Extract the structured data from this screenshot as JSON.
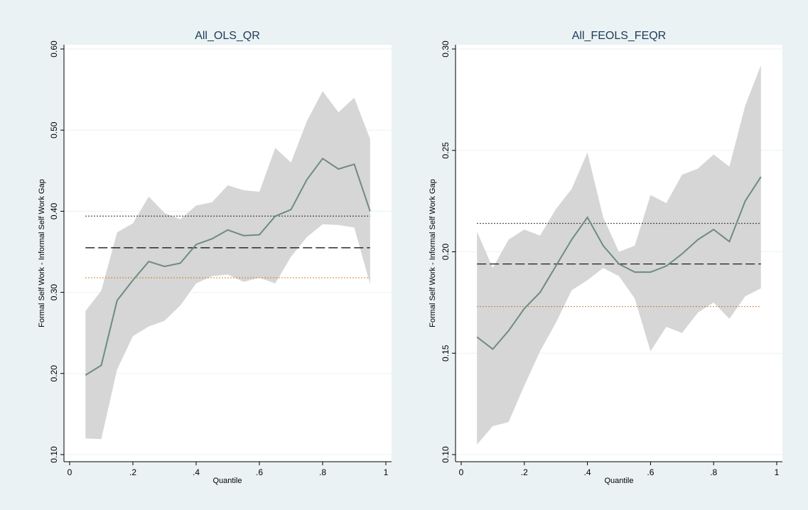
{
  "chart_data": [
    {
      "type": "line",
      "title": "All_OLS_QR",
      "xlabel": "Quantile",
      "ylabel": "Formal Self Work - Informal Self Work Gap",
      "xlim": [
        0,
        1
      ],
      "ylim": [
        0.1,
        0.6
      ],
      "x_ticks": [
        "0",
        ".2",
        ".4",
        ".6",
        ".8",
        "1"
      ],
      "y_ticks": [
        "0.10",
        "0.20",
        "0.30",
        "0.40",
        "0.50",
        "0.60"
      ],
      "x_tick_values": [
        0,
        0.2,
        0.4,
        0.6,
        0.8,
        1
      ],
      "y_tick_values": [
        0.1,
        0.2,
        0.3,
        0.4,
        0.5,
        0.6
      ],
      "grid": true,
      "x": [
        0.05,
        0.1,
        0.15,
        0.2,
        0.25,
        0.3,
        0.35,
        0.4,
        0.45,
        0.5,
        0.55,
        0.6,
        0.65,
        0.7,
        0.75,
        0.8,
        0.85,
        0.9,
        0.95
      ],
      "estimate": [
        0.198,
        0.21,
        0.29,
        0.315,
        0.338,
        0.332,
        0.336,
        0.359,
        0.366,
        0.377,
        0.37,
        0.371,
        0.394,
        0.402,
        0.439,
        0.465,
        0.452,
        0.458,
        0.4
      ],
      "ci_upper": [
        0.277,
        0.302,
        0.374,
        0.385,
        0.418,
        0.398,
        0.39,
        0.407,
        0.411,
        0.432,
        0.426,
        0.424,
        0.478,
        0.46,
        0.511,
        0.548,
        0.522,
        0.54,
        0.489
      ],
      "ci_lower": [
        0.12,
        0.119,
        0.205,
        0.246,
        0.258,
        0.265,
        0.284,
        0.311,
        0.32,
        0.322,
        0.313,
        0.318,
        0.311,
        0.344,
        0.368,
        0.384,
        0.383,
        0.38,
        0.31
      ],
      "ols_estimate": 0.355,
      "ols_ci": [
        0.318,
        0.394
      ],
      "colors": {
        "estimate": "#6e8c7e",
        "band": "#d6d6d6",
        "ols": "#1a1a1a",
        "ols_ci_lower": "#c96a1a"
      }
    },
    {
      "type": "line",
      "title": "All_FEOLS_FEQR",
      "xlabel": "Quantile",
      "ylabel": "Formal Self Work - Informal Self Work Gap",
      "xlim": [
        0,
        1
      ],
      "ylim": [
        0.1,
        0.3
      ],
      "x_ticks": [
        "0",
        ".2",
        ".4",
        ".6",
        ".8",
        "1"
      ],
      "y_ticks": [
        "0.10",
        "0.15",
        "0.20",
        "0.25",
        "0.30"
      ],
      "x_tick_values": [
        0,
        0.2,
        0.4,
        0.6,
        0.8,
        1
      ],
      "y_tick_values": [
        0.1,
        0.15,
        0.2,
        0.25,
        0.3
      ],
      "grid": true,
      "x": [
        0.05,
        0.1,
        0.15,
        0.2,
        0.25,
        0.3,
        0.35,
        0.4,
        0.45,
        0.5,
        0.55,
        0.6,
        0.65,
        0.7,
        0.75,
        0.8,
        0.85,
        0.9,
        0.95
      ],
      "estimate": [
        0.158,
        0.152,
        0.161,
        0.172,
        0.18,
        0.193,
        0.206,
        0.217,
        0.203,
        0.194,
        0.19,
        0.19,
        0.193,
        0.199,
        0.206,
        0.211,
        0.205,
        0.225,
        0.237
      ],
      "ci_upper": [
        0.21,
        0.192,
        0.206,
        0.211,
        0.208,
        0.221,
        0.231,
        0.249,
        0.217,
        0.2,
        0.203,
        0.228,
        0.224,
        0.238,
        0.241,
        0.248,
        0.242,
        0.272,
        0.292
      ],
      "ci_lower": [
        0.105,
        0.114,
        0.116,
        0.134,
        0.151,
        0.165,
        0.181,
        0.186,
        0.192,
        0.188,
        0.177,
        0.151,
        0.163,
        0.16,
        0.17,
        0.175,
        0.167,
        0.178,
        0.182
      ],
      "ols_estimate": 0.194,
      "ols_ci": [
        0.173,
        0.214
      ],
      "colors": {
        "estimate": "#6e8c7e",
        "band": "#d6d6d6",
        "ols": "#1a1a1a",
        "ols_ci_lower": "#c96a1a"
      }
    }
  ]
}
